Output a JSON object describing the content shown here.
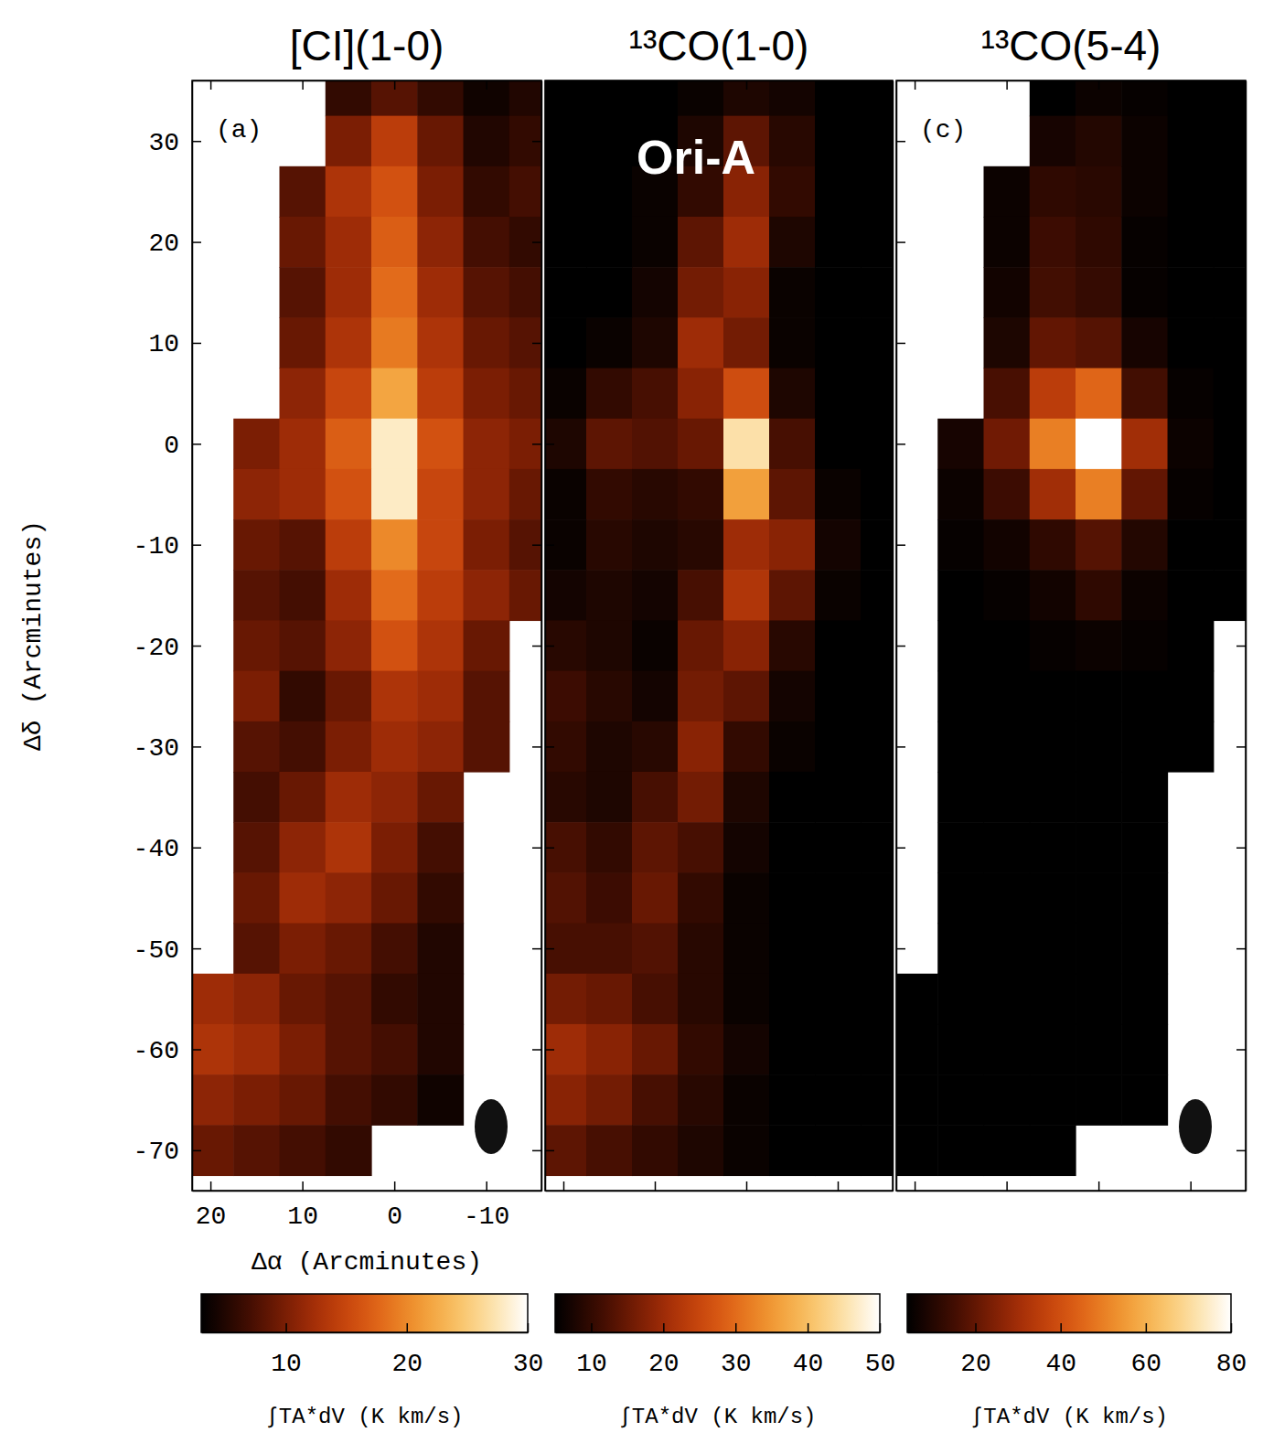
{
  "chart_data": [
    {
      "type": "heatmap",
      "title": "[CI](1-0)",
      "panel_label": "(a)",
      "x_label": "Δα (Arcminutes)",
      "y_label": "Δδ (Arcminutes)",
      "xlim": [
        22,
        -16
      ],
      "ylim": [
        -74,
        36
      ],
      "xticks": [
        20,
        10,
        0,
        -10
      ],
      "yticks": [
        30,
        20,
        10,
        0,
        -10,
        -20,
        -30,
        -40,
        -50,
        -60,
        -70
      ],
      "x": [
        20,
        15,
        10,
        5,
        0,
        -5,
        -10,
        -15
      ],
      "y": [
        35,
        30,
        25,
        20,
        15,
        10,
        5,
        0,
        -5,
        -10,
        -15,
        -20,
        -25,
        -30,
        -35,
        -40,
        -45,
        -50,
        -55,
        -60,
        -65,
        -70
      ],
      "values": [
        [
          null,
          null,
          null,
          6,
          8,
          6,
          4,
          5
        ],
        [
          null,
          null,
          null,
          10,
          14,
          9,
          5,
          6
        ],
        [
          null,
          null,
          8,
          13,
          16,
          10,
          6,
          7
        ],
        [
          null,
          null,
          9,
          12,
          17,
          11,
          7,
          6
        ],
        [
          null,
          null,
          8,
          12,
          18,
          12,
          8,
          7
        ],
        [
          null,
          null,
          9,
          13,
          19,
          13,
          9,
          8
        ],
        [
          null,
          null,
          11,
          15,
          22,
          14,
          10,
          9
        ],
        [
          null,
          10,
          12,
          17,
          28,
          16,
          11,
          10
        ],
        [
          null,
          11,
          12,
          16,
          28,
          15,
          11,
          9
        ],
        [
          null,
          9,
          8,
          14,
          20,
          15,
          10,
          8
        ],
        [
          null,
          8,
          7,
          12,
          18,
          14,
          11,
          9
        ],
        [
          null,
          9,
          8,
          11,
          16,
          13,
          9,
          null
        ],
        [
          null,
          10,
          6,
          9,
          13,
          12,
          8,
          null
        ],
        [
          null,
          8,
          7,
          10,
          12,
          11,
          8,
          null
        ],
        [
          null,
          7,
          9,
          12,
          11,
          9,
          null,
          null
        ],
        [
          null,
          8,
          11,
          13,
          10,
          7,
          null,
          null
        ],
        [
          null,
          9,
          12,
          11,
          9,
          6,
          null,
          null
        ],
        [
          null,
          8,
          10,
          9,
          7,
          5,
          null,
          null
        ],
        [
          12,
          11,
          9,
          8,
          6,
          5,
          null,
          null
        ],
        [
          13,
          12,
          10,
          8,
          7,
          5,
          null,
          null
        ],
        [
          11,
          10,
          9,
          7,
          6,
          4,
          null,
          null
        ],
        [
          9,
          8,
          7,
          6,
          null,
          null,
          null,
          null
        ]
      ],
      "colorbar": {
        "range": [
          3,
          30
        ],
        "ticks": [
          10,
          20,
          30
        ],
        "label": "∫TA*dV (K km/s)"
      }
    },
    {
      "type": "heatmap",
      "title": "¹³CO(1-0)",
      "annotation": "Ori-A",
      "tick_labels": false,
      "xlim": [
        22,
        -16
      ],
      "ylim": [
        -74,
        36
      ],
      "xticks": [
        20,
        10,
        0,
        -10
      ],
      "yticks": [
        30,
        20,
        10,
        0,
        -10,
        -20,
        -30,
        -40,
        -50,
        -60,
        -70
      ],
      "x": [
        20,
        15,
        10,
        5,
        0,
        -5,
        -10,
        -15
      ],
      "y": [
        35,
        30,
        25,
        20,
        15,
        10,
        5,
        0,
        -5,
        -10,
        -15,
        -20,
        -25,
        -30,
        -35,
        -40,
        -45,
        -50,
        -55,
        -60,
        -65,
        -70
      ],
      "values": [
        [
          5,
          5,
          5,
          6,
          8,
          7,
          5,
          5
        ],
        [
          5,
          5,
          5,
          8,
          14,
          9,
          5,
          5
        ],
        [
          5,
          5,
          6,
          10,
          18,
          10,
          5,
          5
        ],
        [
          5,
          5,
          6,
          14,
          20,
          8,
          5,
          5
        ],
        [
          5,
          5,
          7,
          16,
          18,
          6,
          5,
          5
        ],
        [
          5,
          6,
          8,
          20,
          16,
          6,
          5,
          5
        ],
        [
          6,
          10,
          12,
          18,
          26,
          8,
          5,
          5
        ],
        [
          8,
          14,
          13,
          15,
          45,
          12,
          5,
          5
        ],
        [
          6,
          10,
          9,
          10,
          36,
          14,
          6,
          5
        ],
        [
          6,
          9,
          8,
          9,
          20,
          18,
          7,
          5
        ],
        [
          7,
          8,
          7,
          12,
          22,
          14,
          6,
          5
        ],
        [
          9,
          8,
          6,
          15,
          18,
          9,
          5,
          5
        ],
        [
          11,
          9,
          7,
          16,
          14,
          7,
          5,
          5
        ],
        [
          10,
          8,
          9,
          18,
          10,
          6,
          5,
          5
        ],
        [
          9,
          8,
          12,
          16,
          8,
          5,
          5,
          5
        ],
        [
          12,
          10,
          14,
          12,
          7,
          5,
          5,
          5
        ],
        [
          13,
          11,
          15,
          10,
          6,
          5,
          5,
          5
        ],
        [
          12,
          12,
          13,
          9,
          6,
          5,
          5,
          5
        ],
        [
          16,
          15,
          12,
          9,
          6,
          5,
          5,
          5
        ],
        [
          20,
          18,
          15,
          10,
          7,
          5,
          5,
          5
        ],
        [
          18,
          16,
          12,
          9,
          6,
          5,
          5,
          5
        ],
        [
          14,
          12,
          10,
          8,
          6,
          5,
          5,
          5
        ]
      ],
      "colorbar": {
        "range": [
          5,
          50
        ],
        "ticks": [
          10,
          20,
          30,
          40,
          50
        ],
        "label": "∫TA*dV (K km/s)"
      }
    },
    {
      "type": "heatmap",
      "title": "¹³CO(5-4)",
      "panel_label": "(c)",
      "tick_labels": false,
      "xlim": [
        22,
        -16
      ],
      "ylim": [
        -74,
        36
      ],
      "xticks": [
        20,
        10,
        0,
        -10
      ],
      "yticks": [
        30,
        20,
        10,
        0,
        -10,
        -20,
        -30,
        -40,
        -50,
        -60,
        -70
      ],
      "x": [
        20,
        15,
        10,
        5,
        0,
        -5,
        -10,
        -15
      ],
      "y": [
        35,
        30,
        25,
        20,
        15,
        10,
        5,
        0,
        -5,
        -10,
        -15,
        -20,
        -25,
        -30,
        -35,
        -40,
        -45,
        -50,
        -55,
        -60,
        -65,
        -70
      ],
      "values": [
        [
          null,
          null,
          null,
          4,
          6,
          5,
          4,
          4
        ],
        [
          null,
          null,
          null,
          8,
          10,
          6,
          4,
          4
        ],
        [
          null,
          null,
          6,
          12,
          11,
          6,
          4,
          4
        ],
        [
          null,
          null,
          6,
          14,
          12,
          5,
          4,
          4
        ],
        [
          null,
          null,
          7,
          15,
          13,
          5,
          4,
          4
        ],
        [
          null,
          null,
          9,
          20,
          18,
          8,
          4,
          4
        ],
        [
          null,
          null,
          16,
          35,
          45,
          15,
          5,
          4
        ],
        [
          null,
          8,
          22,
          50,
          80,
          30,
          6,
          4
        ],
        [
          null,
          6,
          14,
          30,
          50,
          20,
          5,
          4
        ],
        [
          null,
          5,
          7,
          12,
          18,
          10,
          4,
          4
        ],
        [
          null,
          4,
          5,
          7,
          12,
          6,
          4,
          4
        ],
        [
          null,
          4,
          4,
          5,
          6,
          5,
          4,
          null
        ],
        [
          null,
          4,
          4,
          4,
          4,
          4,
          4,
          null
        ],
        [
          null,
          4,
          4,
          4,
          4,
          4,
          4,
          null
        ],
        [
          null,
          4,
          4,
          4,
          4,
          4,
          null,
          null
        ],
        [
          null,
          4,
          4,
          4,
          4,
          4,
          null,
          null
        ],
        [
          null,
          4,
          4,
          4,
          4,
          4,
          null,
          null
        ],
        [
          null,
          4,
          4,
          4,
          4,
          4,
          null,
          null
        ],
        [
          4,
          4,
          4,
          4,
          4,
          4,
          null,
          null
        ],
        [
          4,
          4,
          4,
          4,
          4,
          4,
          null,
          null
        ],
        [
          4,
          4,
          4,
          4,
          4,
          4,
          null,
          null
        ],
        [
          4,
          4,
          4,
          4,
          null,
          null,
          null,
          null
        ]
      ],
      "colorbar": {
        "range": [
          4,
          80
        ],
        "ticks": [
          20,
          40,
          60,
          80
        ],
        "label": "∫TA*dV (K km/s)"
      }
    }
  ]
}
